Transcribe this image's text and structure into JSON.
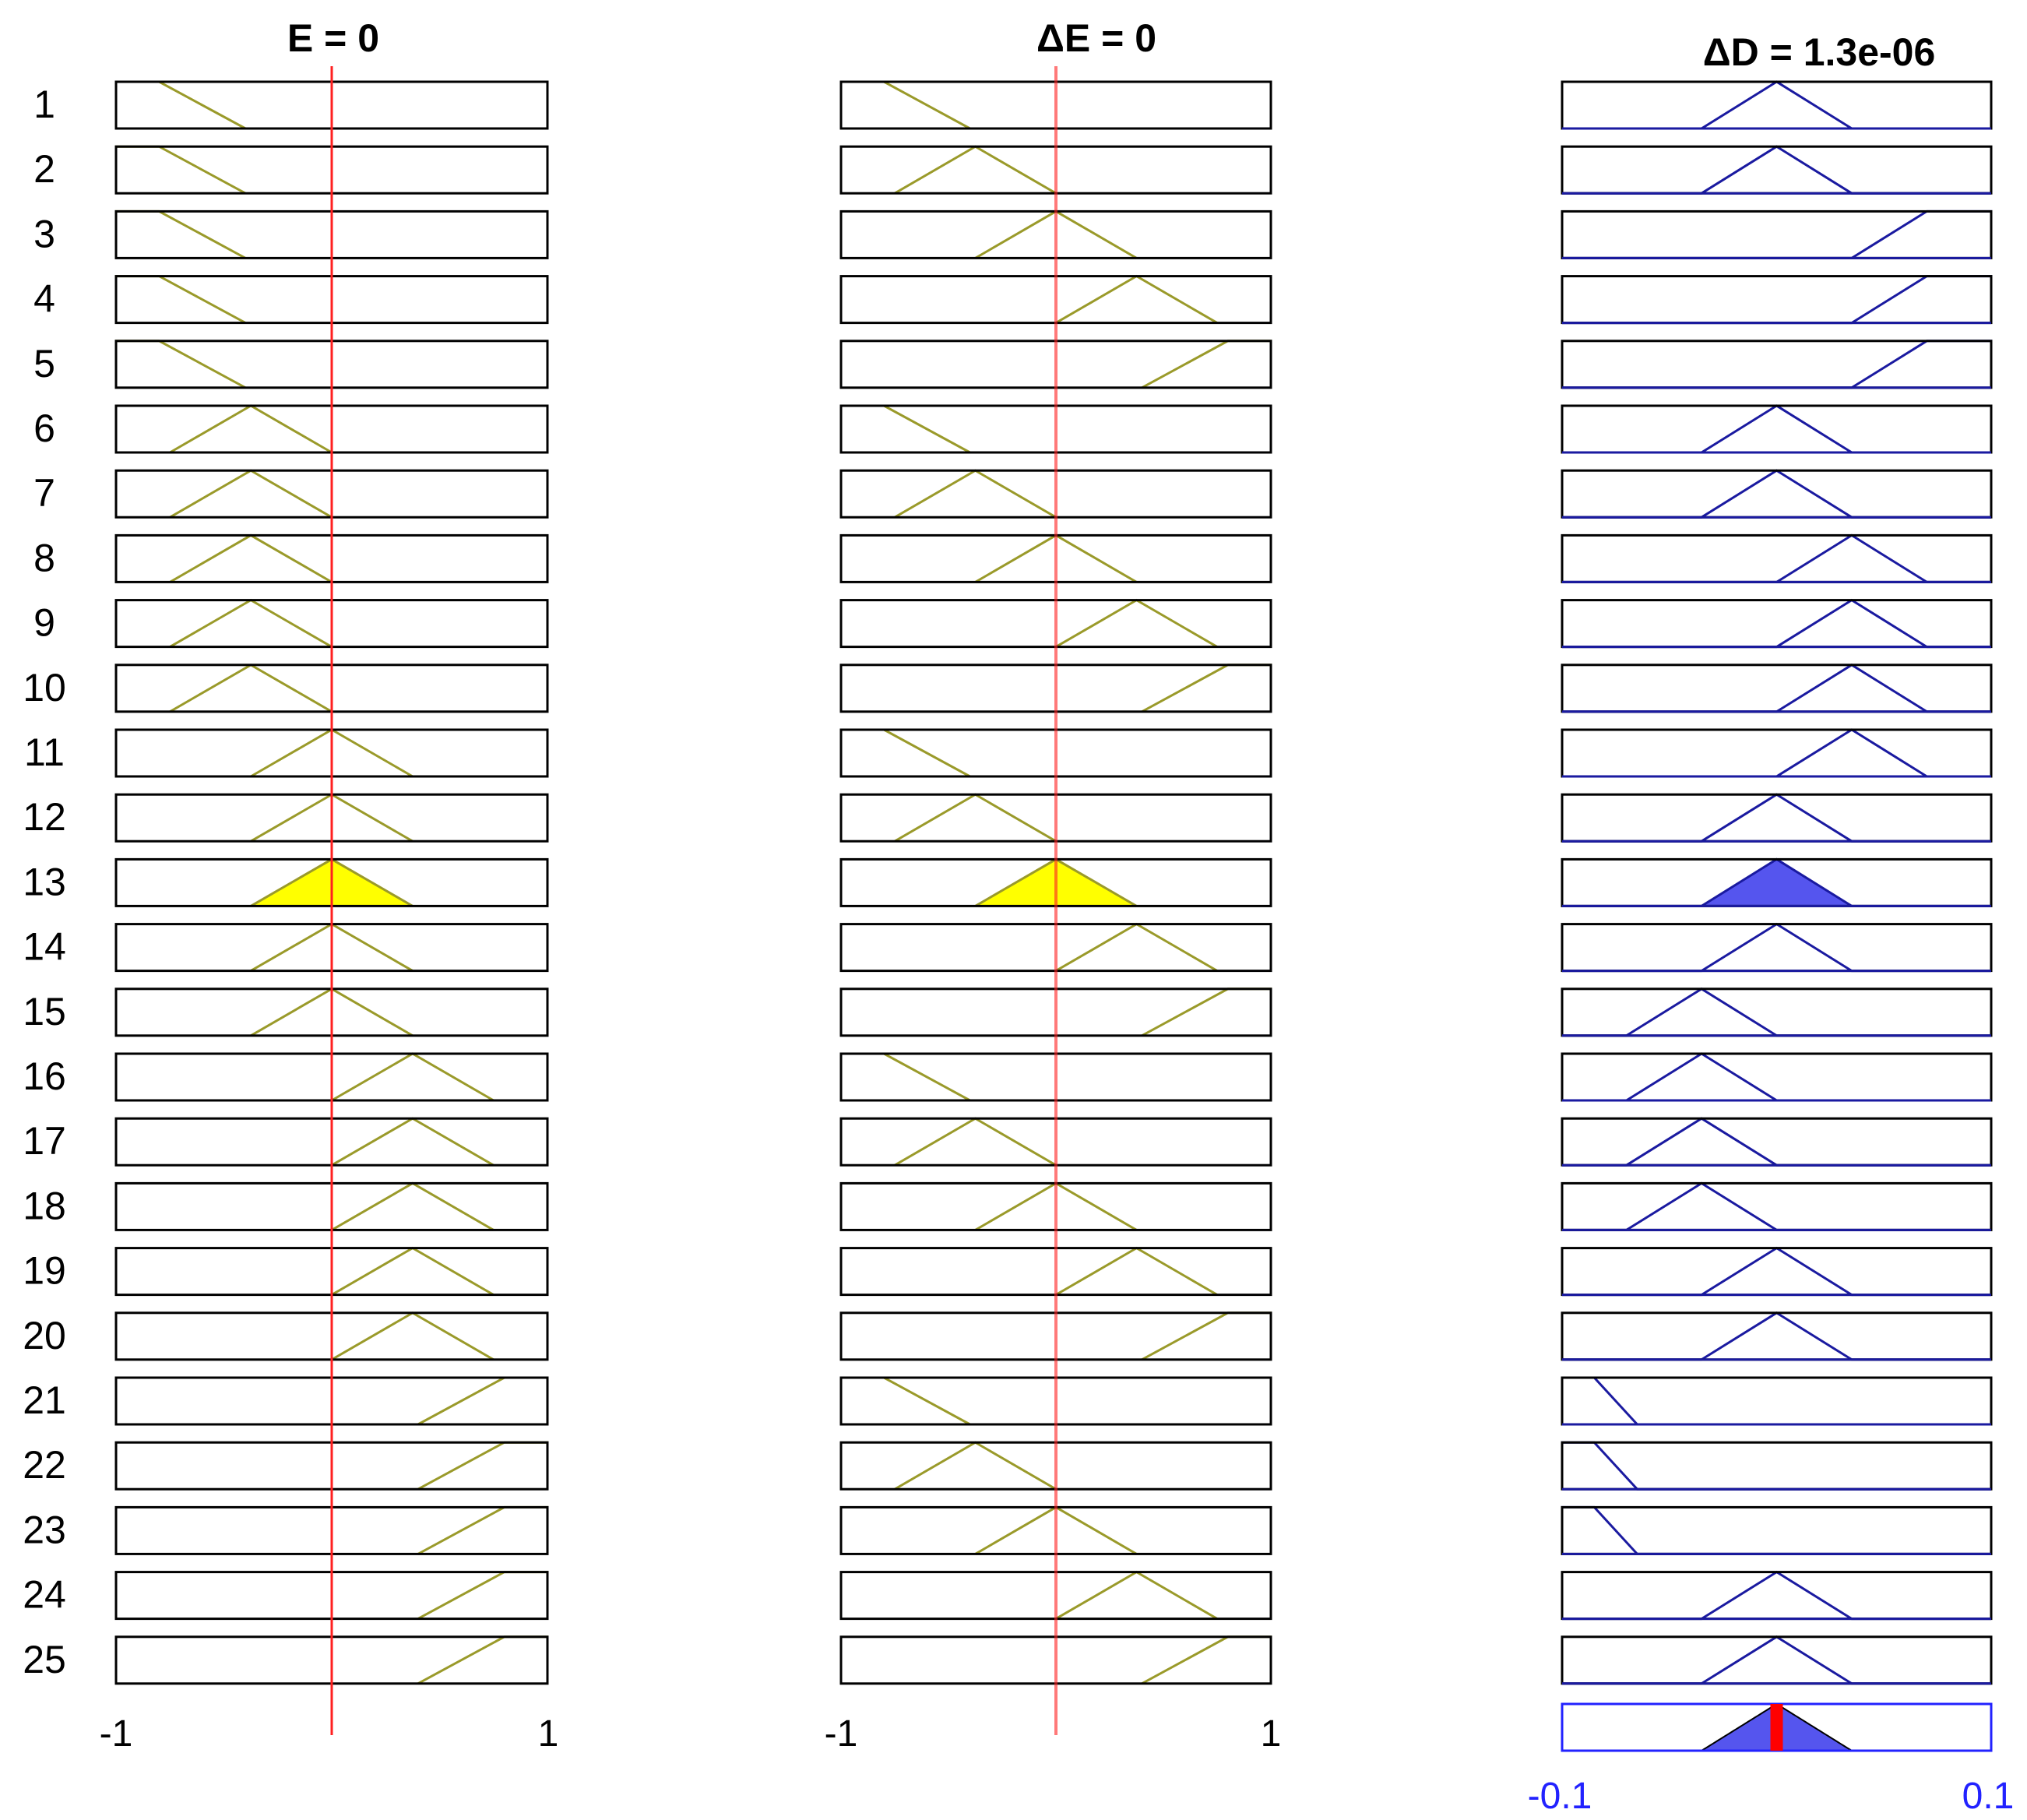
{
  "titles": {
    "input1": "E = 0",
    "input2": "ΔE = 0",
    "output": "ΔD = 1.3e-06"
  },
  "rule_labels": [
    "1",
    "2",
    "3",
    "4",
    "5",
    "6",
    "7",
    "8",
    "9",
    "10",
    "11",
    "12",
    "13",
    "14",
    "15",
    "16",
    "17",
    "18",
    "19",
    "20",
    "21",
    "22",
    "23",
    "24",
    "25"
  ],
  "axis_labels": {
    "input1_min": "-1",
    "input1_max": "1",
    "input2_min": "-1",
    "input2_max": "1",
    "output_min": "-0.1",
    "output_max": "0.1"
  },
  "colors": {
    "input_mf": "#9a9a2a",
    "input_fill": "#ffff00",
    "output_mf": "#1a1aa0",
    "output_fill": "#5555ee",
    "output_axis": "#2222ff",
    "indicator": "#ff2020",
    "defuzz_bar": "#ff0000"
  },
  "chart_data": {
    "type": "fuzzy-rule-viewer",
    "input_values": {
      "E": 0,
      "dE": 0
    },
    "output_value": 1.3e-06,
    "input_ranges": {
      "E": [
        -1,
        1
      ],
      "dE": [
        -1,
        1
      ]
    },
    "output_range": [
      -0.1,
      0.1
    ],
    "mf_shapes": {
      "input": {
        "NB": [
          -1.2,
          -1,
          -0.8,
          -0.4
        ],
        "NS": [
          -0.75,
          -0.375,
          0
        ],
        "ZE": [
          -0.375,
          0,
          0.375
        ],
        "PS": [
          0,
          0.375,
          0.75
        ],
        "PB": [
          0.4,
          0.8,
          1,
          1.2
        ]
      },
      "output": {
        "NB": [
          -0.12,
          -0.1,
          -0.085,
          -0.065
        ],
        "NS": [
          -0.07,
          -0.035,
          0
        ],
        "ZE": [
          -0.035,
          0,
          0.035
        ],
        "PS": [
          0,
          0.035,
          0.07
        ],
        "PB": [
          0.035,
          0.07,
          0.1,
          0.12
        ]
      }
    },
    "rules": [
      {
        "E": "NB",
        "dE": "NB",
        "dD": "ZE"
      },
      {
        "E": "NB",
        "dE": "NS",
        "dD": "ZE"
      },
      {
        "E": "NB",
        "dE": "ZE",
        "dD": "PB"
      },
      {
        "E": "NB",
        "dE": "PS",
        "dD": "PB"
      },
      {
        "E": "NB",
        "dE": "PB",
        "dD": "PB"
      },
      {
        "E": "NS",
        "dE": "NB",
        "dD": "ZE"
      },
      {
        "E": "NS",
        "dE": "NS",
        "dD": "ZE"
      },
      {
        "E": "NS",
        "dE": "ZE",
        "dD": "PS"
      },
      {
        "E": "NS",
        "dE": "PS",
        "dD": "PS"
      },
      {
        "E": "NS",
        "dE": "PB",
        "dD": "PS"
      },
      {
        "E": "ZE",
        "dE": "NB",
        "dD": "PS"
      },
      {
        "E": "ZE",
        "dE": "NS",
        "dD": "ZE"
      },
      {
        "E": "ZE",
        "dE": "ZE",
        "dD": "ZE"
      },
      {
        "E": "ZE",
        "dE": "PS",
        "dD": "ZE"
      },
      {
        "E": "ZE",
        "dE": "PB",
        "dD": "NS"
      },
      {
        "E": "PS",
        "dE": "NB",
        "dD": "NS"
      },
      {
        "E": "PS",
        "dE": "NS",
        "dD": "NS"
      },
      {
        "E": "PS",
        "dE": "ZE",
        "dD": "NS"
      },
      {
        "E": "PS",
        "dE": "PS",
        "dD": "ZE"
      },
      {
        "E": "PS",
        "dE": "PB",
        "dD": "ZE"
      },
      {
        "E": "PB",
        "dE": "NB",
        "dD": "NB"
      },
      {
        "E": "PB",
        "dE": "NS",
        "dD": "NB"
      },
      {
        "E": "PB",
        "dE": "ZE",
        "dD": "NB"
      },
      {
        "E": "PB",
        "dE": "PS",
        "dD": "ZE"
      },
      {
        "E": "PB",
        "dE": "PB",
        "dD": "ZE"
      }
    ]
  }
}
